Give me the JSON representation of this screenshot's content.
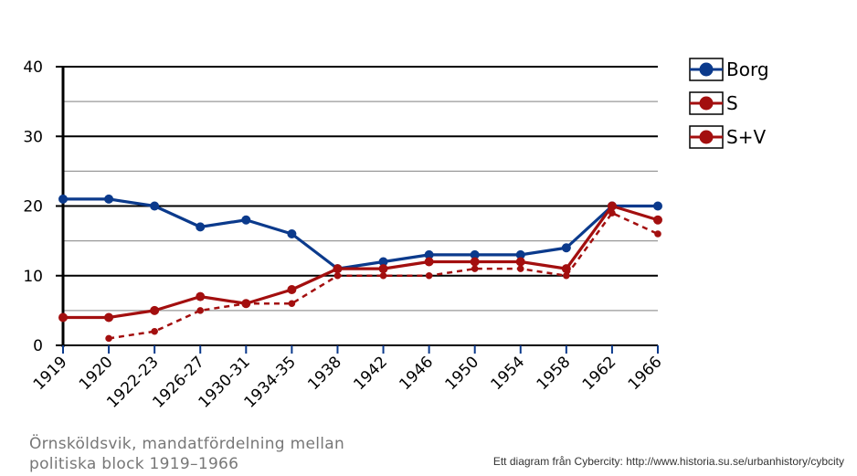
{
  "chart_data": {
    "type": "line",
    "categories": [
      "1919",
      "1920",
      "1922-23",
      "1926-27",
      "1930-31",
      "1934-35",
      "1938",
      "1942",
      "1946",
      "1950",
      "1954",
      "1958",
      "1962",
      "1966"
    ],
    "ylim": [
      0,
      40
    ],
    "yticks": [
      0,
      10,
      20,
      30,
      40
    ],
    "grid": true,
    "legend_position": "right",
    "series": [
      {
        "name": "Borg",
        "color": "#0b3a8c",
        "style": "solid",
        "values": [
          21,
          21,
          20,
          17,
          18,
          16,
          11,
          12,
          13,
          13,
          13,
          14,
          20,
          20
        ]
      },
      {
        "name": "S",
        "color": "#a30f0f",
        "style": "dashed",
        "values": [
          null,
          1,
          2,
          5,
          6,
          6,
          10,
          10,
          10,
          11,
          11,
          10,
          19,
          16
        ]
      },
      {
        "name": "S+V",
        "color": "#a30f0f",
        "style": "solid",
        "values": [
          4,
          4,
          5,
          7,
          6,
          8,
          11,
          11,
          12,
          12,
          12,
          11,
          20,
          18
        ]
      }
    ]
  },
  "caption": {
    "line1": "Örnsköldsvik, mandatfördelning mellan",
    "line2": "politiska block 1919–1966"
  },
  "credit": "Ett diagram från Cybercity: http://www.historia.su.se/urbanhistory/cybcity"
}
